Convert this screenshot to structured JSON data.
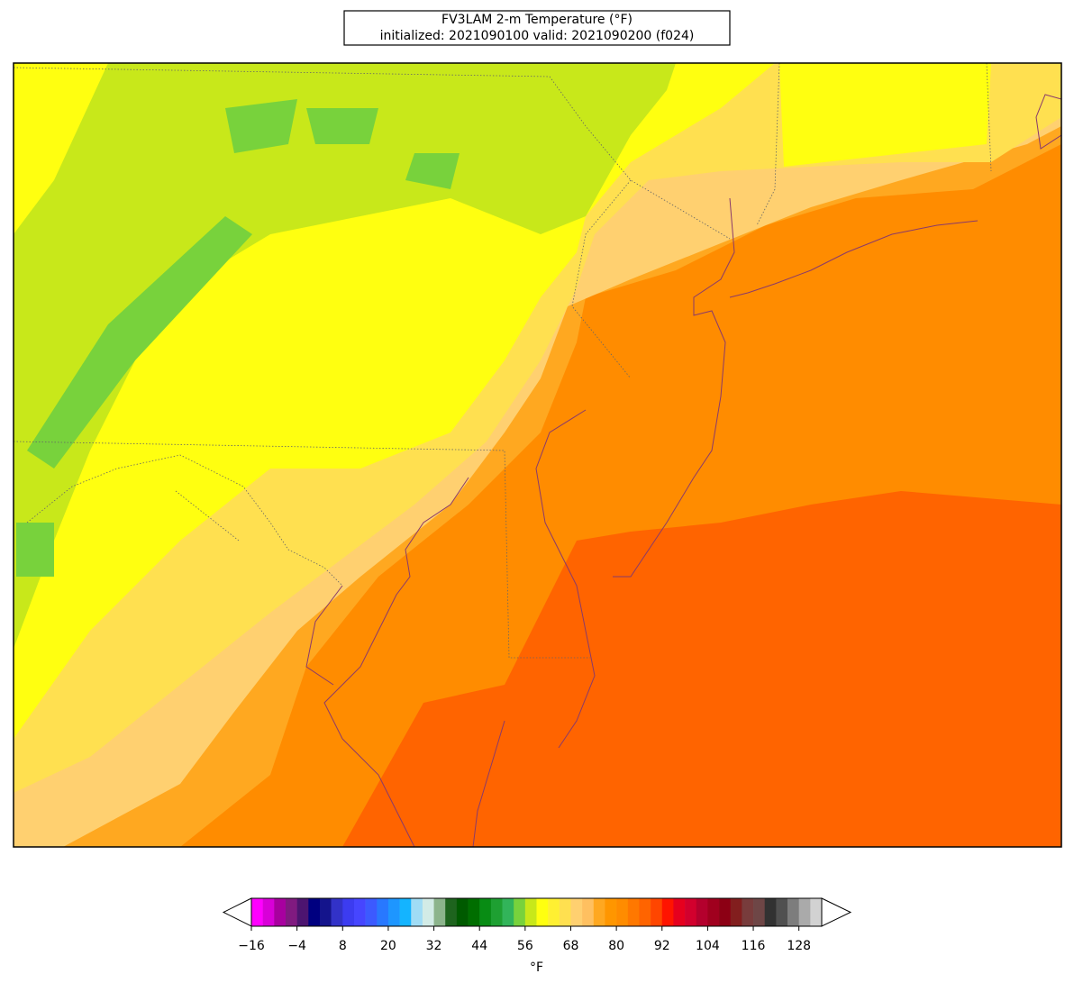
{
  "title": "FV3LAM 2-m Temperature (°F)",
  "subtitle": "initialized: 2021090100 valid: 2021090200 (f024)",
  "colorbar": {
    "label": "°F",
    "extend": "both",
    "levels": [
      -16,
      -13,
      -10,
      -7,
      -4,
      -1,
      2,
      5,
      8,
      11,
      14,
      17,
      20,
      23,
      26,
      29,
      32,
      35,
      38,
      41,
      44,
      47,
      50,
      53,
      56,
      59,
      62,
      65,
      68,
      71,
      74,
      77,
      80,
      83,
      86,
      89,
      92,
      95,
      98,
      101,
      104,
      107,
      110,
      113,
      116,
      119,
      122,
      125,
      128,
      131,
      134
    ],
    "colors": [
      "#ff00ff",
      "#d800d8",
      "#a8009f",
      "#801a80",
      "#4c1470",
      "#000080",
      "#14148c",
      "#3232c8",
      "#3c3cf0",
      "#4646ff",
      "#3c5aff",
      "#2878ff",
      "#1e96ff",
      "#14b4ff",
      "#a0dcf5",
      "#d2ebe6",
      "#8cb48c",
      "#1e641e",
      "#005a00",
      "#006e00",
      "#088c14",
      "#1ea032",
      "#32b45a",
      "#78d23c",
      "#c8e81a",
      "#ffff10",
      "#fff032",
      "#ffe050",
      "#ffd070",
      "#ffc060",
      "#ffa820",
      "#ff9600",
      "#ff8c00",
      "#ff7800",
      "#ff6400",
      "#ff4600",
      "#ff1400",
      "#e6001e",
      "#d2002d",
      "#b4002d",
      "#a0001e",
      "#8c0014",
      "#821e1e",
      "#783c3c",
      "#6e4646",
      "#323232",
      "#505050",
      "#7d7d7d",
      "#aaaaaa",
      "#d2d2d2"
    ],
    "ticks": [
      {
        "value": -16,
        "label": "−16"
      },
      {
        "value": -4,
        "label": "−4"
      },
      8,
      20,
      32,
      44,
      56,
      68,
      80,
      92,
      104,
      116,
      128
    ]
  }
}
